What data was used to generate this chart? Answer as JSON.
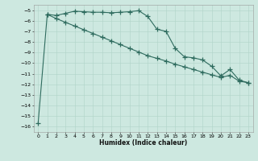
{
  "xlabel": "Humidex (Indice chaleur)",
  "bg_color": "#cde8e0",
  "line_color": "#2e6b5e",
  "grid_color": "#b0d4c8",
  "xlim": [
    -0.5,
    23.5
  ],
  "ylim": [
    -16.5,
    -4.5
  ],
  "yticks": [
    -16,
    -15,
    -14,
    -13,
    -12,
    -11,
    -10,
    -9,
    -8,
    -7,
    -6,
    -5
  ],
  "xticks": [
    0,
    1,
    2,
    3,
    4,
    5,
    6,
    7,
    8,
    9,
    10,
    11,
    12,
    13,
    14,
    15,
    16,
    17,
    18,
    19,
    20,
    21,
    22,
    23
  ],
  "line1_x": [
    0,
    1,
    2,
    3,
    4,
    5,
    6,
    7,
    8,
    9,
    10,
    11,
    12,
    13,
    14,
    15,
    16,
    17,
    18,
    19,
    20,
    21,
    22,
    23
  ],
  "line1_y": [
    -15.7,
    -5.4,
    -5.5,
    -5.3,
    -5.1,
    -5.15,
    -5.2,
    -5.2,
    -5.25,
    -5.2,
    -5.15,
    -5.05,
    -5.6,
    -6.8,
    -7.0,
    -8.6,
    -9.4,
    -9.5,
    -9.7,
    -10.3,
    -11.2,
    -10.6,
    -11.6,
    -11.85
  ],
  "line2_x": [
    1,
    2,
    3,
    4,
    5,
    6,
    7,
    8,
    9,
    10,
    11,
    12,
    13,
    14,
    15,
    16,
    17,
    18,
    19,
    20,
    21,
    22,
    23
  ],
  "line2_y": [
    -5.4,
    -5.8,
    -6.15,
    -6.5,
    -6.85,
    -7.2,
    -7.55,
    -7.9,
    -8.25,
    -8.6,
    -8.95,
    -9.3,
    -9.55,
    -9.8,
    -10.1,
    -10.35,
    -10.6,
    -10.85,
    -11.1,
    -11.35,
    -11.15,
    -11.7,
    -11.85
  ]
}
